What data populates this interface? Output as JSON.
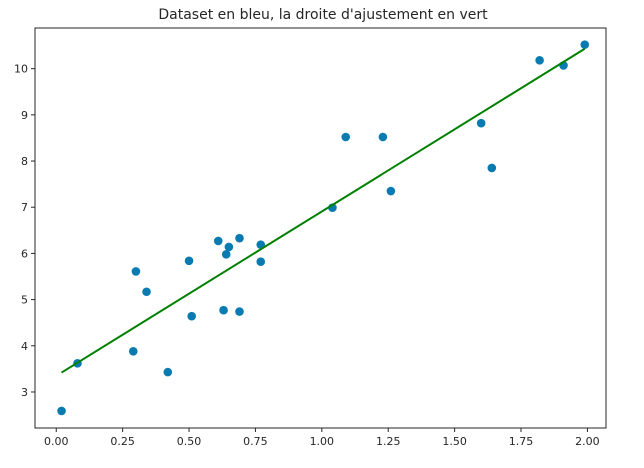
{
  "chart_data": {
    "type": "scatter",
    "title": "Dataset en bleu, la droite d'ajustement en vert",
    "xlabel": "",
    "ylabel": "",
    "xlim": [
      -0.08,
      2.07
    ],
    "ylim": [
      2.22,
      10.88
    ],
    "xticks": [
      0.0,
      0.25,
      0.5,
      0.75,
      1.0,
      1.25,
      1.5,
      1.75,
      2.0
    ],
    "xtick_labels": [
      "0.00",
      "0.25",
      "0.50",
      "0.75",
      "1.00",
      "1.25",
      "1.50",
      "1.75",
      "2.00"
    ],
    "yticks": [
      3,
      4,
      5,
      6,
      7,
      8,
      9,
      10
    ],
    "ytick_labels": [
      "3",
      "4",
      "5",
      "6",
      "7",
      "8",
      "9",
      "10"
    ],
    "grid": false,
    "series": [
      {
        "kind": "scatter",
        "color": "#0a7bb0",
        "points": [
          [
            0.02,
            2.59
          ],
          [
            0.08,
            3.62
          ],
          [
            0.29,
            3.88
          ],
          [
            0.3,
            5.61
          ],
          [
            0.34,
            5.17
          ],
          [
            0.42,
            3.43
          ],
          [
            0.5,
            5.84
          ],
          [
            0.51,
            4.64
          ],
          [
            0.61,
            6.27
          ],
          [
            0.63,
            4.77
          ],
          [
            0.64,
            5.98
          ],
          [
            0.65,
            6.14
          ],
          [
            0.69,
            4.74
          ],
          [
            0.69,
            6.33
          ],
          [
            0.77,
            6.19
          ],
          [
            0.77,
            5.82
          ],
          [
            1.04,
            6.99
          ],
          [
            1.09,
            8.52
          ],
          [
            1.23,
            8.52
          ],
          [
            1.26,
            7.35
          ],
          [
            1.6,
            8.82
          ],
          [
            1.64,
            7.85
          ],
          [
            1.82,
            10.18
          ],
          [
            1.91,
            10.07
          ],
          [
            1.99,
            10.52
          ]
        ]
      },
      {
        "kind": "line",
        "color": "#008000",
        "points": [
          [
            0.02,
            3.42
          ],
          [
            1.99,
            10.43
          ]
        ]
      }
    ]
  }
}
